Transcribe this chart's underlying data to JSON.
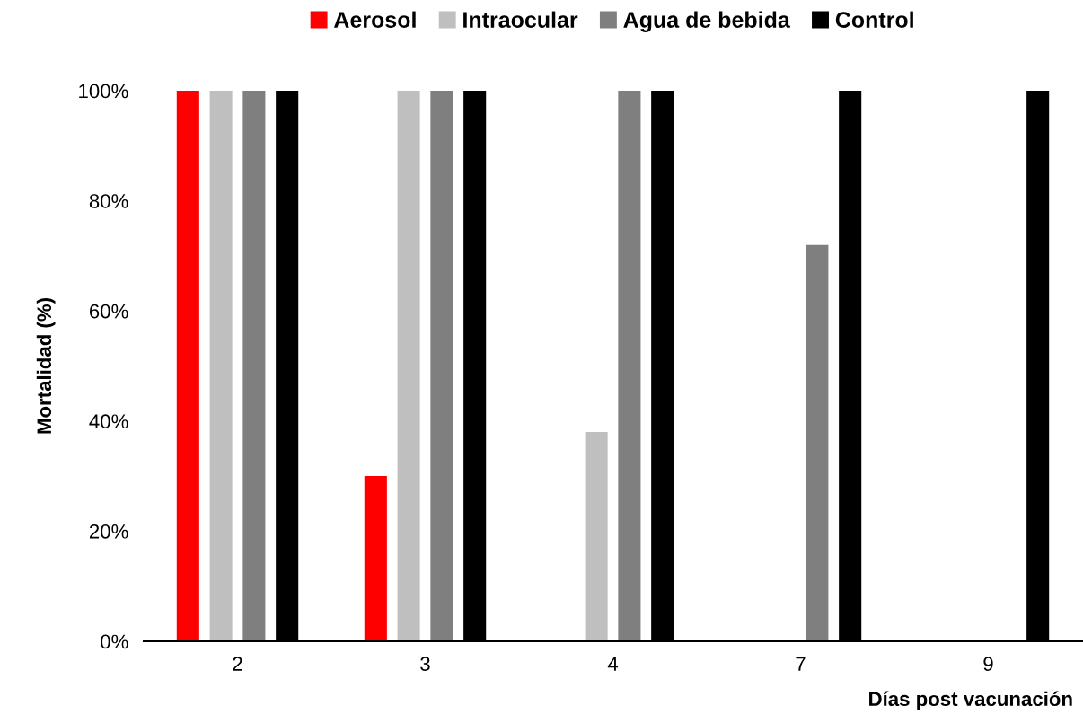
{
  "chart_data": {
    "type": "bar",
    "categories": [
      "2",
      "3",
      "4",
      "7",
      "9"
    ],
    "series": [
      {
        "name": "Aerosol",
        "color": "#ff0000",
        "values": [
          100,
          30,
          0,
          0,
          0
        ]
      },
      {
        "name": "Intraocular",
        "color": "#bfbfbf",
        "values": [
          100,
          100,
          38,
          0,
          0
        ]
      },
      {
        "name": "Agua de bebida",
        "color": "#7f7f7f",
        "values": [
          100,
          100,
          100,
          72,
          0
        ]
      },
      {
        "name": "Control",
        "color": "#000000",
        "values": [
          100,
          100,
          100,
          100,
          100
        ]
      }
    ],
    "ylabel": "Mortalidad (%)",
    "xlabel": "Días post vacunación",
    "ylim": [
      0,
      100
    ],
    "yticks": [
      {
        "value": 0,
        "label": "0%"
      },
      {
        "value": 20,
        "label": "20%"
      },
      {
        "value": 40,
        "label": "40%"
      },
      {
        "value": 60,
        "label": "60%"
      },
      {
        "value": 80,
        "label": "80%"
      },
      {
        "value": 100,
        "label": "100%"
      }
    ],
    "legend": "top",
    "grid": false
  }
}
